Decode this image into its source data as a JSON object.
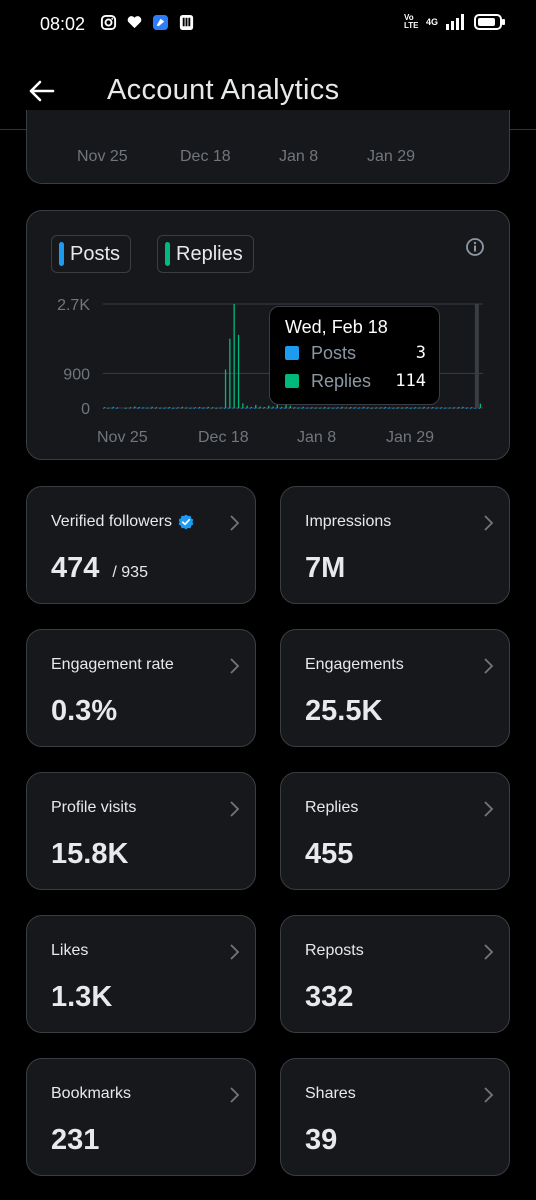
{
  "status_bar": {
    "time": "08:02",
    "left_icons": [
      "instagram-icon",
      "heart-icon",
      "app-icon",
      "subway-icon"
    ],
    "network_label": "4G",
    "volte_label": "Vo LTE"
  },
  "header": {
    "title": "Account Analytics"
  },
  "top_chart_axis": [
    "Nov 25",
    "Dec 18",
    "Jan 8",
    "Jan 29"
  ],
  "chart_legend": {
    "posts_label": "Posts",
    "replies_label": "Replies"
  },
  "colors": {
    "posts": "#1d9bf0",
    "replies": "#00ba7c",
    "verified": "#1d9bf0"
  },
  "tooltip": {
    "date": "Wed, Feb 18",
    "posts_label": "Posts",
    "posts_value": "3",
    "replies_label": "Replies",
    "replies_value": "114"
  },
  "chart_data": {
    "type": "bar",
    "y_ticks": [
      "2.7K",
      "900",
      "0"
    ],
    "y_tick_values": [
      2700,
      900,
      0
    ],
    "ylim": [
      0,
      2700
    ],
    "x_ticks": [
      "Nov 25",
      "Dec 18",
      "Jan 8",
      "Jan 29"
    ],
    "grid": true,
    "series": [
      {
        "name": "Posts",
        "values": [
          5,
          3,
          4,
          2,
          0,
          3,
          5,
          8,
          2,
          4,
          6,
          3,
          2,
          5,
          3,
          4,
          2,
          3,
          6,
          4,
          3,
          2,
          5,
          3,
          4,
          2,
          3,
          4,
          2,
          3,
          5,
          4,
          2,
          3,
          4,
          2,
          3,
          5,
          2,
          3,
          4,
          2,
          3,
          4,
          3,
          2,
          3,
          4,
          2,
          3,
          4,
          2,
          3,
          5,
          2,
          3,
          4,
          3,
          2,
          3,
          4,
          2,
          3,
          4,
          2,
          3,
          5,
          3,
          2,
          3,
          4,
          2,
          3,
          4,
          2,
          3,
          5,
          3,
          2,
          3,
          4,
          2,
          3,
          4,
          3,
          2,
          3,
          3
        ]
      },
      {
        "name": "Replies",
        "values": [
          20,
          10,
          30,
          15,
          0,
          10,
          20,
          40,
          25,
          15,
          10,
          30,
          20,
          10,
          15,
          25,
          10,
          20,
          30,
          15,
          10,
          20,
          25,
          15,
          30,
          20,
          10,
          15,
          1000,
          1800,
          2700,
          1900,
          120,
          60,
          30,
          80,
          40,
          25,
          60,
          40,
          140,
          30,
          380,
          60,
          20,
          15,
          30,
          10,
          20,
          15,
          10,
          25,
          15,
          10,
          20,
          30,
          15,
          25,
          20,
          15,
          30,
          20,
          10,
          15,
          20,
          25,
          15,
          10,
          20,
          15,
          25,
          10,
          20,
          15,
          30,
          20,
          25,
          15,
          20,
          10,
          15,
          20,
          25,
          30,
          15,
          20,
          40,
          114
        ]
      }
    ]
  },
  "metrics": [
    {
      "label": "Verified followers",
      "value": "474",
      "sub": "/ 935",
      "verified": true
    },
    {
      "label": "Impressions",
      "value": "7M"
    },
    {
      "label": "Engagement rate",
      "value": "0.3%"
    },
    {
      "label": "Engagements",
      "value": "25.5K"
    },
    {
      "label": "Profile visits",
      "value": "15.8K"
    },
    {
      "label": "Replies",
      "value": "455"
    },
    {
      "label": "Likes",
      "value": "1.3K"
    },
    {
      "label": "Reposts",
      "value": "332"
    },
    {
      "label": "Bookmarks",
      "value": "231"
    },
    {
      "label": "Shares",
      "value": "39"
    }
  ]
}
